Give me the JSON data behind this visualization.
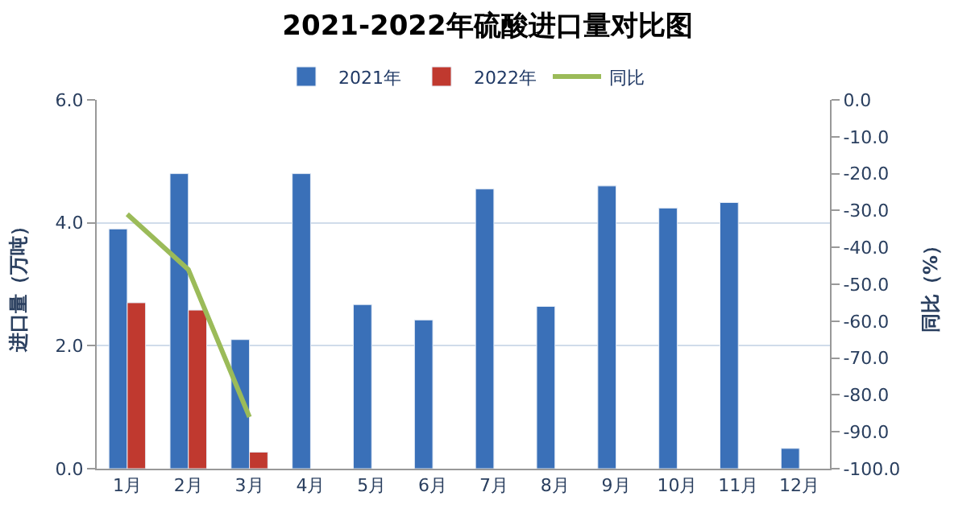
{
  "chart_data": {
    "type": "bar",
    "title": "2021-2022年硫酸进口量对比图",
    "ylabel": "进口量（万吨）",
    "y2label": "同比（%）",
    "categories": [
      "1月",
      "2月",
      "3月",
      "4月",
      "5月",
      "6月",
      "7月",
      "8月",
      "9月",
      "10月",
      "11月",
      "12月"
    ],
    "series": [
      {
        "name": "2021年",
        "color": "#3a70b8",
        "values": [
          3.9,
          4.8,
          2.1,
          4.8,
          2.67,
          2.42,
          4.55,
          2.64,
          4.6,
          4.24,
          4.33,
          0.33
        ]
      },
      {
        "name": "2022年",
        "color": "#c0392f",
        "values": [
          2.7,
          2.58,
          0.27,
          null,
          null,
          null,
          null,
          null,
          null,
          null,
          null,
          null
        ]
      },
      {
        "name": "同比",
        "type": "line",
        "axis": "y2",
        "color": "#9bbb59",
        "values": [
          -31,
          -46,
          -86,
          null,
          null,
          null,
          null,
          null,
          null,
          null,
          null,
          null
        ]
      }
    ],
    "ylim": [
      0,
      6
    ],
    "yticks": [
      {
        "value": 0,
        "label": "0.0"
      },
      {
        "value": 2,
        "label": "2.0"
      },
      {
        "value": 4,
        "label": "4.0"
      },
      {
        "value": 6,
        "label": "6.0"
      }
    ],
    "y2lim": [
      -100,
      0
    ],
    "y2ticks": [
      {
        "value": 0,
        "label": "0.0"
      },
      {
        "value": -10,
        "label": "-10.0"
      },
      {
        "value": -20,
        "label": "-20.0"
      },
      {
        "value": -30,
        "label": "-30.0"
      },
      {
        "value": -40,
        "label": "-40.0"
      },
      {
        "value": -50,
        "label": "-50.0"
      },
      {
        "value": -60,
        "label": "-60.0"
      },
      {
        "value": -70,
        "label": "-70.0"
      },
      {
        "value": -80,
        "label": "-80.0"
      },
      {
        "value": -90,
        "label": "-90.0"
      },
      {
        "value": -100,
        "label": "-100.0"
      }
    ],
    "grid": "y",
    "legend": "top",
    "marker": "none"
  }
}
